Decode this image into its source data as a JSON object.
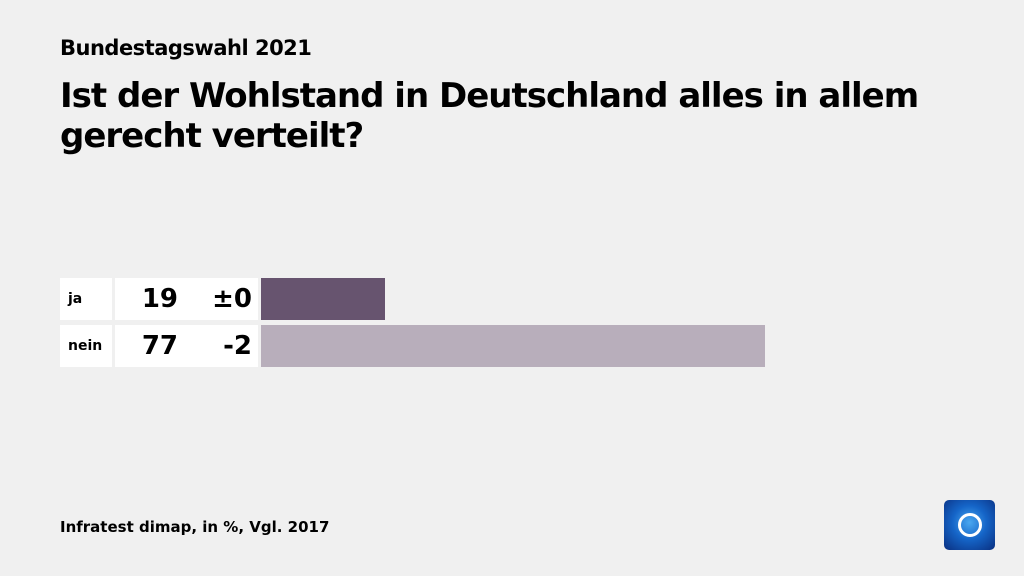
{
  "header": {
    "supertitle": "Bundestagswahl 2021",
    "title": "Ist der Wohlstand in Deutschland alles in allem gerecht verteilt?"
  },
  "chart_data": {
    "type": "bar",
    "orientation": "horizontal",
    "categories": [
      "ja",
      "nein"
    ],
    "values": [
      19,
      77
    ],
    "changes": [
      "±0",
      "-2"
    ],
    "colors": [
      "#67546f",
      "#b8aebb"
    ],
    "xlim": [
      0,
      100
    ]
  },
  "footer": {
    "source": "Infratest dimap, in %, Vgl. 2017",
    "logo_text": "1"
  }
}
